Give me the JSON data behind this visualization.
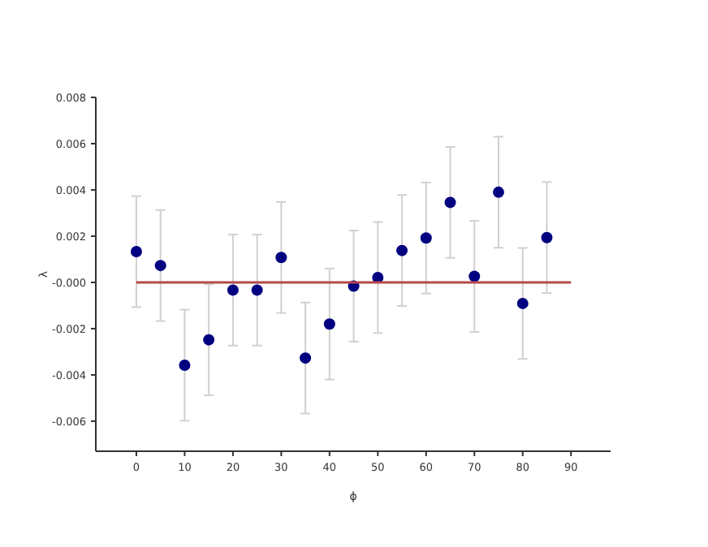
{
  "chart_data": {
    "type": "scatter",
    "xlabel": "ϕ",
    "ylabel": "λ",
    "xlim": [
      -8.4,
      98.2
    ],
    "xticks": [
      0,
      10,
      20,
      30,
      40,
      50,
      60,
      70,
      80,
      90
    ],
    "ylim": [
      -0.0073,
      0.008
    ],
    "yticks": [
      -0.006,
      -0.004,
      -0.002,
      {
        "value": 0,
        "label": "-0.000"
      },
      0.002,
      0.004,
      0.006,
      0.008
    ],
    "grid": false,
    "marker": "circle",
    "series": [
      {
        "color": "#000080",
        "x": [
          0,
          5,
          10,
          15,
          20,
          25,
          30,
          35,
          40,
          45,
          50,
          55,
          60,
          65,
          70,
          75,
          80,
          85
        ],
        "values": [
          0.00133,
          0.00073,
          -0.00358,
          -0.00248,
          -0.00033,
          -0.00033,
          0.00108,
          -0.00327,
          -0.0018,
          -0.00016,
          0.00021,
          0.00138,
          0.00192,
          0.00346,
          0.00026,
          0.0039,
          -0.00091,
          0.00194
        ],
        "errors": [
          0.0024,
          0.0024,
          0.0024,
          0.0024,
          0.0024,
          0.0024,
          0.0024,
          0.0024,
          0.0024,
          0.0024,
          0.0024,
          0.0024,
          0.0024,
          0.0024,
          0.0024,
          0.0024,
          0.0024,
          0.0024
        ]
      },
      {
        "type": "line",
        "color": "#b5494a",
        "x": [
          0,
          90
        ],
        "values": [
          0,
          0
        ],
        "marker": "none"
      }
    ]
  }
}
